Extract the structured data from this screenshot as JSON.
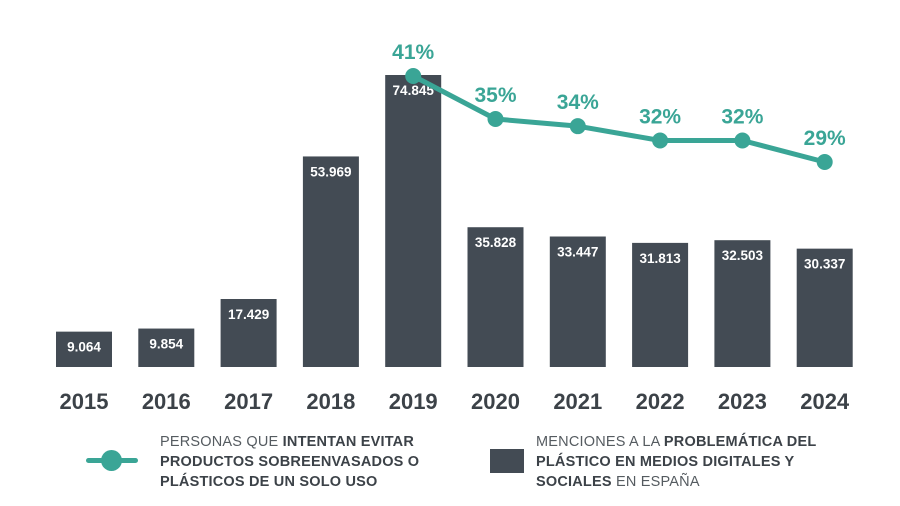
{
  "colors": {
    "bar": "#434b54",
    "line": "#3aa596",
    "year_label": "#3c4248",
    "bar_label": "#ffffff"
  },
  "chart_data": {
    "type": "bar+line",
    "categories": [
      "2015",
      "2016",
      "2017",
      "2018",
      "2019",
      "2020",
      "2021",
      "2022",
      "2023",
      "2024"
    ],
    "series": [
      {
        "type": "bar",
        "values": [
          9064,
          9854,
          17429,
          53969,
          74845,
          35828,
          33447,
          31813,
          32503,
          30337
        ],
        "labels": [
          "9.064",
          "9.854",
          "17.429",
          "53.969",
          "74.845",
          "35.828",
          "33.447",
          "31.813",
          "32.503",
          "30.337"
        ]
      },
      {
        "type": "line",
        "values": [
          null,
          null,
          null,
          null,
          41,
          35,
          34,
          32,
          32,
          29
        ],
        "labels": [
          "",
          "",
          "",
          "",
          "41%",
          "35%",
          "34%",
          "32%",
          "32%",
          "29%"
        ]
      }
    ],
    "ylim_bar": [
      0,
      80000
    ],
    "ylim_line": [
      0,
      100
    ],
    "grid": false
  },
  "legend": {
    "line": {
      "pre": "PERSONAS QUE ",
      "bold": "INTENTAN EVITAR PRODUCTOS SOBREENVASADOS O PLÁSTICOS DE UN SOLO USO",
      "post": ""
    },
    "bar": {
      "pre": "MENCIONES A LA ",
      "bold": "PROBLEMÁTICA DEL PLÁSTICO EN MEDIOS DIGITALES Y SOCIALES",
      "post": " EN ESPAÑA"
    }
  }
}
